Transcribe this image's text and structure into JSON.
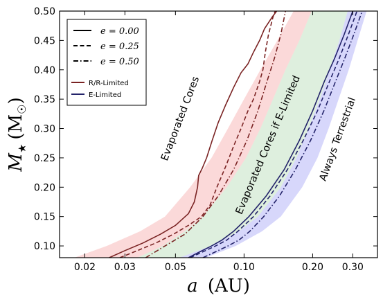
{
  "chart_data": {
    "type": "line",
    "xlabel_var": "a",
    "xlabel_unit": "(AU)",
    "ylabel_var": "M",
    "ylabel_sub": "★",
    "ylabel_unit_open": "(M",
    "ylabel_unit_sym": "☉",
    "ylabel_unit_close": ")",
    "x_scale": "log",
    "xlim": [
      0.0155,
      0.385
    ],
    "ylim": [
      0.08,
      0.5
    ],
    "x_ticks": [
      {
        "value": 0.02,
        "label": "0.02"
      },
      {
        "value": 0.03,
        "label": "0.03"
      },
      {
        "value": 0.05,
        "label": "0.05"
      },
      {
        "value": 0.1,
        "label": "0.10"
      },
      {
        "value": 0.2,
        "label": "0.20"
      },
      {
        "value": 0.3,
        "label": "0.30"
      }
    ],
    "y_ticks": [
      {
        "value": 0.1,
        "label": "0.10"
      },
      {
        "value": 0.15,
        "label": "0.15"
      },
      {
        "value": 0.2,
        "label": "0.20"
      },
      {
        "value": 0.25,
        "label": "0.25"
      },
      {
        "value": 0.3,
        "label": "0.30"
      },
      {
        "value": 0.35,
        "label": "0.35"
      },
      {
        "value": 0.4,
        "label": "0.40"
      },
      {
        "value": 0.45,
        "label": "0.45"
      },
      {
        "value": 0.5,
        "label": "0.50"
      }
    ],
    "legend_linestyles": [
      {
        "label": "e = 0.00",
        "dash": "solid"
      },
      {
        "label": "e = 0.25",
        "dash": "dashed"
      },
      {
        "label": "e = 0.50",
        "dash": "dashdot"
      }
    ],
    "legend_colors": [
      {
        "label": "R/R-Limited",
        "color": "#7a2323"
      },
      {
        "label": "E-Limited",
        "color": "#23236a"
      }
    ],
    "region_labels": [
      {
        "text": "Evaporated Cores",
        "x": 0.054,
        "y": 0.315,
        "angle": -69
      },
      {
        "text": "Evaporated Cores if E-Limited",
        "x": 0.131,
        "y": 0.27,
        "angle": -67
      },
      {
        "text": "Always Terrestrial",
        "x": 0.265,
        "y": 0.28,
        "angle": -70
      }
    ],
    "bands": [
      {
        "name": "R/R-Limited",
        "color": "#f4a0a0",
        "opacity": 0.4,
        "left": [
          [
            0.018,
            0.08
          ],
          [
            0.025,
            0.1
          ],
          [
            0.035,
            0.125
          ],
          [
            0.045,
            0.15
          ],
          [
            0.058,
            0.2
          ],
          [
            0.072,
            0.25
          ],
          [
            0.085,
            0.3
          ],
          [
            0.1,
            0.35
          ],
          [
            0.118,
            0.4
          ],
          [
            0.14,
            0.45
          ],
          [
            0.165,
            0.5
          ]
        ],
        "right": [
          [
            0.034,
            0.08
          ],
          [
            0.044,
            0.1
          ],
          [
            0.055,
            0.125
          ],
          [
            0.066,
            0.15
          ],
          [
            0.084,
            0.2
          ],
          [
            0.102,
            0.25
          ],
          [
            0.118,
            0.3
          ],
          [
            0.134,
            0.35
          ],
          [
            0.152,
            0.4
          ],
          [
            0.175,
            0.45
          ],
          [
            0.198,
            0.5
          ]
        ]
      },
      {
        "name": "E-Limited",
        "color": "#9ccf9c",
        "opacity": 0.33,
        "left": [
          [
            0.034,
            0.08
          ],
          [
            0.044,
            0.1
          ],
          [
            0.055,
            0.125
          ],
          [
            0.066,
            0.15
          ],
          [
            0.084,
            0.2
          ],
          [
            0.102,
            0.25
          ],
          [
            0.118,
            0.3
          ],
          [
            0.134,
            0.35
          ],
          [
            0.152,
            0.4
          ],
          [
            0.175,
            0.45
          ],
          [
            0.198,
            0.5
          ]
        ],
        "right": [
          [
            0.052,
            0.08
          ],
          [
            0.072,
            0.1
          ],
          [
            0.095,
            0.125
          ],
          [
            0.115,
            0.15
          ],
          [
            0.145,
            0.2
          ],
          [
            0.17,
            0.25
          ],
          [
            0.192,
            0.3
          ],
          [
            0.215,
            0.35
          ],
          [
            0.238,
            0.4
          ],
          [
            0.262,
            0.45
          ],
          [
            0.285,
            0.5
          ]
        ]
      },
      {
        "name": "Always Terrestrial",
        "color": "#9a9af5",
        "opacity": 0.4,
        "left": [
          [
            0.052,
            0.08
          ],
          [
            0.072,
            0.1
          ],
          [
            0.095,
            0.125
          ],
          [
            0.115,
            0.15
          ],
          [
            0.145,
            0.2
          ],
          [
            0.17,
            0.25
          ],
          [
            0.192,
            0.3
          ],
          [
            0.215,
            0.35
          ],
          [
            0.238,
            0.4
          ],
          [
            0.262,
            0.45
          ],
          [
            0.285,
            0.5
          ]
        ],
        "right": [
          [
            0.068,
            0.08
          ],
          [
            0.092,
            0.1
          ],
          [
            0.12,
            0.125
          ],
          [
            0.145,
            0.15
          ],
          [
            0.18,
            0.2
          ],
          [
            0.21,
            0.25
          ],
          [
            0.235,
            0.3
          ],
          [
            0.26,
            0.35
          ],
          [
            0.288,
            0.4
          ],
          [
            0.315,
            0.45
          ],
          [
            0.345,
            0.5
          ]
        ]
      }
    ],
    "series": [
      {
        "group": "R/R-Limited",
        "e": "0.00",
        "color": "#7a2323",
        "dash": "solid",
        "points": [
          [
            0.0256,
            0.08
          ],
          [
            0.03,
            0.092
          ],
          [
            0.036,
            0.105
          ],
          [
            0.043,
            0.12
          ],
          [
            0.05,
            0.135
          ],
          [
            0.057,
            0.155
          ],
          [
            0.0605,
            0.175
          ],
          [
            0.0625,
            0.2
          ],
          [
            0.0632,
            0.22
          ],
          [
            0.0655,
            0.232
          ],
          [
            0.0685,
            0.25
          ],
          [
            0.0725,
            0.28
          ],
          [
            0.077,
            0.31
          ],
          [
            0.083,
            0.34
          ],
          [
            0.09,
            0.37
          ],
          [
            0.097,
            0.395
          ],
          [
            0.104,
            0.41
          ],
          [
            0.11,
            0.43
          ],
          [
            0.117,
            0.45
          ],
          [
            0.123,
            0.47
          ],
          [
            0.133,
            0.49
          ],
          [
            0.139,
            0.5
          ]
        ]
      },
      {
        "group": "R/R-Limited",
        "e": "0.25",
        "color": "#7a2323",
        "dash": "dashed",
        "points": [
          [
            0.0285,
            0.08
          ],
          [
            0.034,
            0.092
          ],
          [
            0.041,
            0.105
          ],
          [
            0.049,
            0.12
          ],
          [
            0.057,
            0.135
          ],
          [
            0.065,
            0.15
          ],
          [
            0.071,
            0.17
          ],
          [
            0.076,
            0.2
          ],
          [
            0.083,
            0.235
          ],
          [
            0.09,
            0.27
          ],
          [
            0.097,
            0.3
          ],
          [
            0.104,
            0.33
          ],
          [
            0.11,
            0.35
          ],
          [
            0.117,
            0.38
          ],
          [
            0.121,
            0.4
          ],
          [
            0.124,
            0.43
          ],
          [
            0.128,
            0.46
          ],
          [
            0.134,
            0.49
          ],
          [
            0.137,
            0.5
          ]
        ]
      },
      {
        "group": "R/R-Limited",
        "e": "0.50",
        "color": "#7a2323",
        "dash": "dashdot",
        "points": [
          [
            0.037,
            0.08
          ],
          [
            0.045,
            0.1
          ],
          [
            0.055,
            0.12
          ],
          [
            0.066,
            0.15
          ],
          [
            0.077,
            0.185
          ],
          [
            0.09,
            0.23
          ],
          [
            0.103,
            0.28
          ],
          [
            0.115,
            0.33
          ],
          [
            0.126,
            0.38
          ],
          [
            0.136,
            0.42
          ],
          [
            0.145,
            0.46
          ],
          [
            0.152,
            0.5
          ]
        ]
      },
      {
        "group": "E-Limited",
        "e": "0.00",
        "color": "#23236a",
        "dash": "solid",
        "points": [
          [
            0.057,
            0.08
          ],
          [
            0.064,
            0.09
          ],
          [
            0.072,
            0.1
          ],
          [
            0.08,
            0.11
          ],
          [
            0.09,
            0.125
          ],
          [
            0.105,
            0.15
          ],
          [
            0.125,
            0.185
          ],
          [
            0.15,
            0.23
          ],
          [
            0.175,
            0.28
          ],
          [
            0.2,
            0.33
          ],
          [
            0.225,
            0.38
          ],
          [
            0.25,
            0.42
          ],
          [
            0.275,
            0.46
          ],
          [
            0.3,
            0.5
          ]
        ]
      },
      {
        "group": "E-Limited",
        "e": "0.25",
        "color": "#23236a",
        "dash": "dashed",
        "points": [
          [
            0.058,
            0.08
          ],
          [
            0.066,
            0.09
          ],
          [
            0.075,
            0.1
          ],
          [
            0.084,
            0.11
          ],
          [
            0.094,
            0.125
          ],
          [
            0.11,
            0.15
          ],
          [
            0.13,
            0.185
          ],
          [
            0.155,
            0.23
          ],
          [
            0.182,
            0.28
          ],
          [
            0.21,
            0.33
          ],
          [
            0.237,
            0.38
          ],
          [
            0.262,
            0.42
          ],
          [
            0.287,
            0.46
          ],
          [
            0.313,
            0.5
          ]
        ]
      },
      {
        "group": "E-Limited",
        "e": "0.50",
        "color": "#23236a",
        "dash": "dashdot",
        "points": [
          [
            0.066,
            0.08
          ],
          [
            0.075,
            0.09
          ],
          [
            0.085,
            0.1
          ],
          [
            0.095,
            0.11
          ],
          [
            0.106,
            0.125
          ],
          [
            0.122,
            0.15
          ],
          [
            0.143,
            0.185
          ],
          [
            0.168,
            0.23
          ],
          [
            0.196,
            0.28
          ],
          [
            0.224,
            0.33
          ],
          [
            0.252,
            0.38
          ],
          [
            0.277,
            0.42
          ],
          [
            0.303,
            0.46
          ],
          [
            0.33,
            0.5
          ]
        ]
      }
    ]
  }
}
